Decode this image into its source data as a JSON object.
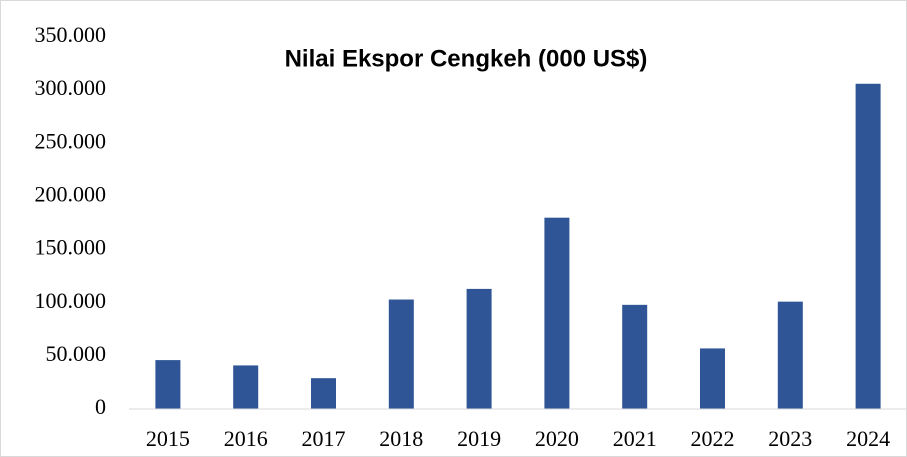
{
  "chart_data": {
    "type": "bar",
    "title": "Nilai Ekspor Cengkeh (000 US$)",
    "categories": [
      "2015",
      "2016",
      "2017",
      "2018",
      "2019",
      "2020",
      "2021",
      "2022",
      "2023",
      "2024"
    ],
    "values": [
      46000,
      41000,
      29000,
      103000,
      113000,
      180000,
      98000,
      57000,
      101000,
      306000
    ],
    "color": "#2f5597",
    "ylim": [
      0,
      350000
    ],
    "yticks": [
      {
        "value": 0,
        "label": "0"
      },
      {
        "value": 50000,
        "label": "50.000"
      },
      {
        "value": 100000,
        "label": "100.000"
      },
      {
        "value": 150000,
        "label": "150.000"
      },
      {
        "value": 200000,
        "label": "200.000"
      },
      {
        "value": 250000,
        "label": "250.000"
      },
      {
        "value": 300000,
        "label": "300.000"
      },
      {
        "value": 350000,
        "label": "350.000"
      }
    ],
    "grid": false
  }
}
